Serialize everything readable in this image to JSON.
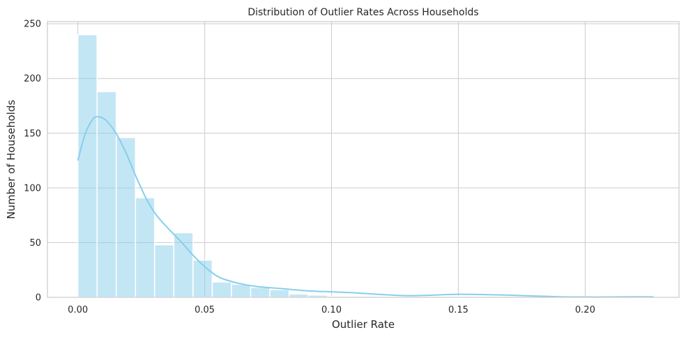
{
  "chart_data": {
    "type": "bar",
    "title": "Distribution of Outlier Rates Across Households",
    "xlabel": "Outlier Rate",
    "ylabel": "Number of Households",
    "xlim": [
      -0.012,
      0.237
    ],
    "ylim": [
      0,
      252
    ],
    "xticks": [
      0.0,
      0.05,
      0.1,
      0.15,
      0.2
    ],
    "xtick_labels": [
      "0.00",
      "0.05",
      "0.10",
      "0.15",
      "0.20"
    ],
    "yticks": [
      0,
      50,
      100,
      150,
      200,
      250
    ],
    "ytick_labels": [
      "0",
      "50",
      "100",
      "150",
      "200",
      "250"
    ],
    "grid": true,
    "bin_start": 0.0,
    "bin_width": 0.00757,
    "values": [
      240,
      188,
      146,
      91,
      48,
      59,
      34,
      14,
      12,
      9,
      7,
      3,
      2,
      1,
      1,
      1,
      0,
      0,
      1,
      1,
      1,
      1,
      1,
      0,
      0,
      0,
      0,
      0,
      0,
      1
    ],
    "kde": {
      "x": [
        0.0,
        0.003,
        0.006,
        0.008,
        0.011,
        0.015,
        0.019,
        0.023,
        0.027,
        0.031,
        0.036,
        0.041,
        0.046,
        0.051,
        0.056,
        0.063,
        0.07,
        0.08,
        0.09,
        0.1,
        0.11,
        0.12,
        0.13,
        0.14,
        0.15,
        0.16,
        0.17,
        0.18,
        0.19,
        0.2,
        0.21,
        0.22,
        0.227
      ],
      "y": [
        125,
        150,
        163,
        165,
        162,
        150,
        132,
        110,
        90,
        75,
        62,
        50,
        37,
        26,
        18,
        13,
        10,
        8,
        6,
        5,
        4,
        2.5,
        1.5,
        2,
        2.8,
        2.5,
        2,
        1.2,
        0.5,
        0.3,
        0.3,
        0.5,
        0.5
      ]
    },
    "bar_color": "#87CEEB",
    "kde_color": "#87CEEB"
  }
}
